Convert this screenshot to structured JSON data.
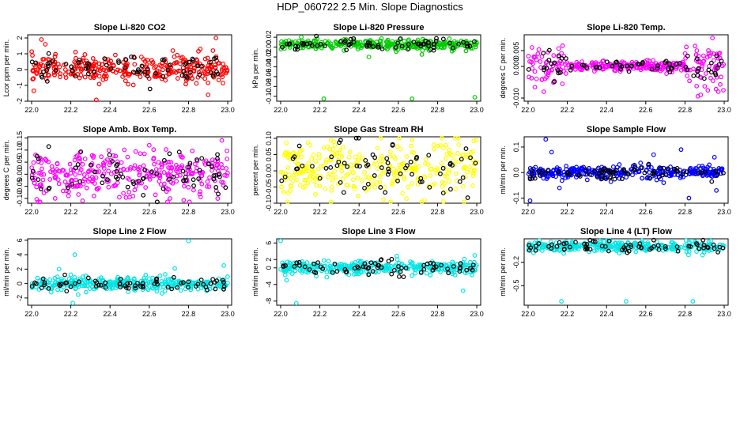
{
  "title": "HDP_060722  2.5 Min. Slope Diagnostics",
  "x_ticks": [
    "22.0",
    "22.2",
    "22.4",
    "22.6",
    "22.8",
    "23.0"
  ],
  "chart_data": [
    {
      "id": "co2",
      "type": "scatter",
      "title": "Slope Li-820 CO2",
      "ylabel": "Lcor ppm per min.",
      "xlim": [
        21.98,
        23.02
      ],
      "ylim": [
        -2,
        2.2
      ],
      "yticks": [
        "-2",
        "-1",
        "0",
        "1",
        "2"
      ],
      "ytick_values": [
        -2,
        -1,
        0,
        1,
        2
      ],
      "color": "#ff0000",
      "spread": 0.4,
      "center": 0.05,
      "outliers": [
        [
          22.05,
          1.9
        ],
        [
          22.07,
          1.6
        ],
        [
          22.33,
          -2.0
        ],
        [
          22.86,
          1.3
        ],
        [
          22.9,
          -1.6
        ],
        [
          22.94,
          2.0
        ],
        [
          22.72,
          1.2
        ]
      ]
    },
    {
      "id": "pressure",
      "type": "scatter",
      "title": "Slope Li-820 Pressure",
      "ylabel": "kPa per min.",
      "xlim": [
        21.98,
        23.02
      ],
      "ylim": [
        -0.11,
        0.025
      ],
      "yticks": [
        "0.02",
        "0.00",
        "-0.02",
        "-0.04",
        "-0.06",
        "-0.08",
        "-0.10"
      ],
      "ytick_values": [
        0.02,
        0.0,
        -0.02,
        -0.04,
        -0.06,
        -0.08,
        -0.1
      ],
      "color": "#00cc00",
      "spread": 0.005,
      "center": 0.005,
      "outliers": [
        [
          22.22,
          -0.105
        ],
        [
          22.67,
          -0.105
        ],
        [
          22.99,
          -0.102
        ],
        [
          22.45,
          -0.02
        ],
        [
          22.72,
          -0.015
        ]
      ]
    },
    {
      "id": "temp",
      "type": "scatter",
      "title": "Slope Li-820 Temp.",
      "ylabel": "degrees C per min.",
      "xlim": [
        21.98,
        23.02
      ],
      "ylim": [
        -0.011,
        0.01
      ],
      "yticks": [
        "-0.010",
        "0.000",
        "0.005"
      ],
      "ytick_values": [
        -0.01,
        0.0,
        0.005
      ],
      "color": "#ff00ff",
      "spread": 0.0008,
      "center": 0.0,
      "outliers": [
        [
          22.02,
          0.006
        ],
        [
          22.08,
          -0.008
        ],
        [
          22.94,
          0.009
        ],
        [
          22.88,
          -0.009
        ],
        [
          22.97,
          -0.008
        ],
        [
          22.05,
          0.004
        ]
      ]
    },
    {
      "id": "ambbox",
      "type": "scatter",
      "title": "Slope Amb. Box Temp.",
      "ylabel": "degrees C per min.",
      "xlim": [
        21.98,
        23.02
      ],
      "ylim": [
        -0.12,
        0.155
      ],
      "yticks": [
        "-0.10",
        "-0.05",
        "0.00",
        "0.05",
        "0.10",
        "0.15"
      ],
      "ytick_values": [
        -0.1,
        -0.05,
        0.0,
        0.05,
        0.1,
        0.15
      ],
      "color": "#ff00ff",
      "spread": 0.045,
      "center": 0.0,
      "outliers": [
        [
          22.97,
          0.14
        ],
        [
          22.26,
          -0.11
        ],
        [
          22.6,
          0.12
        ],
        [
          22.12,
          -0.1
        ]
      ]
    },
    {
      "id": "rh",
      "type": "scatter",
      "title": "Slope Gas Stream RH",
      "ylabel": "percent per min.",
      "xlim": [
        21.98,
        23.02
      ],
      "ylim": [
        -0.1,
        0.105
      ],
      "yticks": [
        "-0.10",
        "-0.05",
        "0.00",
        "0.05",
        "0.10"
      ],
      "ytick_values": [
        -0.1,
        -0.05,
        0.0,
        0.05,
        0.1
      ],
      "color": "#ffff00",
      "spread": 0.045,
      "center": 0.005,
      "outliers": [
        [
          22.83,
          -0.095
        ],
        [
          22.67,
          0.095
        ],
        [
          22.27,
          0.09
        ]
      ]
    },
    {
      "id": "sampleflow",
      "type": "scatter",
      "title": "Slope Sample Flow",
      "ylabel": "ml/min per min.",
      "xlim": [
        21.98,
        23.02
      ],
      "ylim": [
        -0.12,
        0.14
      ],
      "yticks": [
        "-0.1",
        "0.0",
        "0.1"
      ],
      "ytick_values": [
        -0.1,
        0.0,
        0.1
      ],
      "color": "#0000ff",
      "spread": 0.012,
      "center": 0.0,
      "outliers": [
        [
          22.01,
          -0.11
        ],
        [
          22.09,
          0.13
        ],
        [
          22.16,
          -0.06
        ],
        [
          22.64,
          0.07
        ],
        [
          22.82,
          -0.1
        ],
        [
          22.78,
          0.09
        ],
        [
          22.95,
          0.06
        ],
        [
          22.96,
          -0.07
        ],
        [
          22.12,
          0.08
        ]
      ]
    },
    {
      "id": "line2",
      "type": "scatter",
      "title": "Slope Line 2 Flow",
      "ylabel": "ml/min per min.",
      "xlim": [
        21.98,
        23.02
      ],
      "ylim": [
        -3,
        6.2
      ],
      "yticks": [
        "-2",
        "0",
        "2",
        "4",
        "6"
      ],
      "ytick_values": [
        -2,
        0,
        2,
        4,
        6
      ],
      "color": "#00e5e5",
      "spread": 0.45,
      "center": 0.0,
      "outliers": [
        [
          22.22,
          4.0
        ],
        [
          22.21,
          -2.7
        ],
        [
          22.8,
          5.9
        ],
        [
          22.73,
          2.1
        ],
        [
          22.98,
          2.5
        ],
        [
          22.14,
          2.0
        ],
        [
          22.1,
          -1.2
        ]
      ]
    },
    {
      "id": "line3",
      "type": "scatter",
      "title": "Slope Line 3 Flow",
      "ylabel": "ml/min per min.",
      "xlim": [
        21.98,
        23.02
      ],
      "ylim": [
        -9,
        7
      ],
      "yticks": [
        "-8",
        "-4",
        "0",
        "2",
        "6"
      ],
      "ytick_values": [
        -8,
        -4,
        0,
        2,
        6
      ],
      "color": "#00e5e5",
      "spread": 0.8,
      "center": 0.0,
      "outliers": [
        [
          22.0,
          6.5
        ],
        [
          22.08,
          -8.5
        ],
        [
          22.93,
          -5.5
        ],
        [
          22.99,
          3.0
        ],
        [
          22.03,
          -3.0
        ]
      ]
    },
    {
      "id": "line4",
      "type": "scatter",
      "title": "Slope Line 4 (LT) Flow",
      "ylabel": "ml/min per min.",
      "xlim": [
        21.98,
        23.02
      ],
      "ylim": [
        -0.75,
        0.1
      ],
      "yticks": [
        "-0.2",
        "-0.5"
      ],
      "ytick_values": [
        -0.2,
        -0.5
      ],
      "color": "#00e5e5",
      "spread": 0.035,
      "center": 0.0,
      "outliers": [
        [
          22.17,
          -0.7
        ],
        [
          22.5,
          -0.7
        ],
        [
          22.84,
          -0.7
        ]
      ]
    }
  ]
}
